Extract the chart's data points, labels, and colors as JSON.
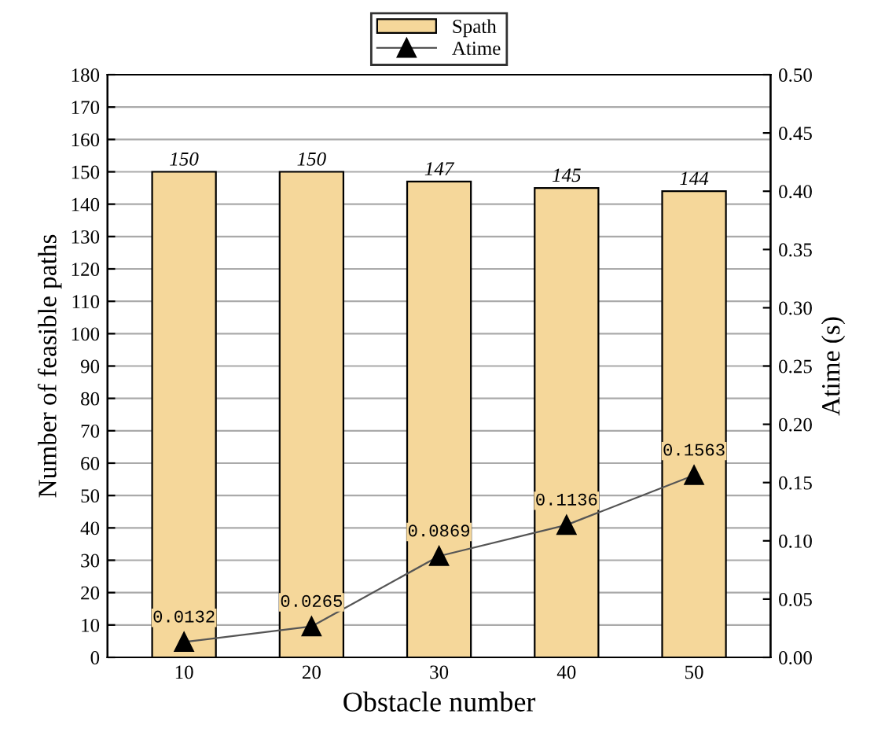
{
  "chart_data": {
    "type": "bar",
    "xlabel": "Obstacle number",
    "ylabel": "Number of feasible paths",
    "y2label": "Atime (s)",
    "categories": [
      "10",
      "20",
      "30",
      "40",
      "50"
    ],
    "series": [
      {
        "name": "Spath",
        "color": "#f5d79a",
        "values": [
          150,
          150,
          147,
          145,
          144
        ]
      },
      {
        "name": "Atime",
        "type": "line",
        "axis": "y2",
        "color": "#000000",
        "marker": "triangle",
        "values": [
          0.0132,
          0.0265,
          0.0869,
          0.1136,
          0.1563
        ]
      }
    ],
    "ylim": [
      0,
      180
    ],
    "yticks": [
      0,
      10,
      20,
      30,
      40,
      50,
      60,
      70,
      80,
      90,
      100,
      110,
      120,
      130,
      140,
      150,
      160,
      170,
      180
    ],
    "y2lim": [
      0,
      0.5
    ],
    "y2ticks": [
      {
        "value": 0,
        "label": "0.00"
      },
      {
        "value": 0.05,
        "label": "0.05"
      },
      {
        "value": 0.1,
        "label": "0.10"
      },
      {
        "value": 0.15,
        "label": "0.15"
      },
      {
        "value": 0.2,
        "label": "0.20"
      },
      {
        "value": 0.25,
        "label": "0.25"
      },
      {
        "value": 0.3,
        "label": "0.30"
      },
      {
        "value": 0.35,
        "label": "0.35"
      },
      {
        "value": 0.4,
        "label": "0.40"
      },
      {
        "value": 0.45,
        "label": "0.45"
      },
      {
        "value": 0.5,
        "label": "0.50"
      }
    ],
    "grid": "y",
    "legend": "top",
    "data_labels": true
  }
}
